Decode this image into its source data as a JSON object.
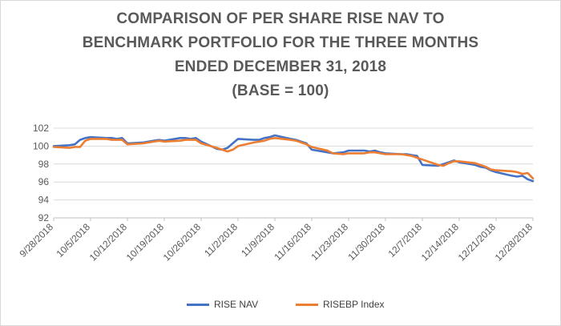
{
  "chart_data": {
    "type": "line",
    "title_lines": [
      "COMPARISON OF PER SHARE RISE NAV TO",
      "BENCHMARK PORTFOLIO FOR THE THREE MONTHS",
      "ENDED DECEMBER 31, 2018",
      "(BASE = 100)"
    ],
    "xlabel": "",
    "ylabel": "",
    "ylim": [
      92,
      102
    ],
    "yticks": [
      92,
      94,
      96,
      98,
      100,
      102
    ],
    "y_tick_labels": [
      "92",
      "94",
      "96",
      "98",
      "100",
      "102"
    ],
    "x_tick_labels": [
      "9/28/2018",
      "10/5/2018",
      "10/12/2018",
      "10/19/2018",
      "10/26/2018",
      "11/2/2018",
      "11/9/2018",
      "11/16/2018",
      "11/23/2018",
      "11/30/2018",
      "12/7/2018",
      "12/14/2018",
      "12/21/2018",
      "12/28/2018"
    ],
    "x_tick_day_offsets": [
      0,
      7,
      14,
      21,
      28,
      35,
      42,
      49,
      56,
      63,
      70,
      77,
      84,
      91
    ],
    "xlim_days": [
      0,
      91
    ],
    "grid": "horizontal",
    "legend_position": "bottom",
    "series": [
      {
        "name": "RISE NAV",
        "color": "#4472c4",
        "points": [
          [
            0,
            100.0
          ],
          [
            3,
            100.1
          ],
          [
            4,
            100.2
          ],
          [
            5,
            100.7
          ],
          [
            6,
            100.9
          ],
          [
            7,
            101.0
          ],
          [
            10,
            100.9
          ],
          [
            11,
            100.9
          ],
          [
            12,
            100.8
          ],
          [
            13,
            100.9
          ],
          [
            14,
            100.3
          ],
          [
            17,
            100.4
          ],
          [
            18,
            100.5
          ],
          [
            19,
            100.6
          ],
          [
            20,
            100.7
          ],
          [
            21,
            100.6
          ],
          [
            24,
            100.9
          ],
          [
            25,
            100.9
          ],
          [
            26,
            100.8
          ],
          [
            27,
            100.9
          ],
          [
            28,
            100.5
          ],
          [
            31,
            99.7
          ],
          [
            32,
            99.6
          ],
          [
            33,
            99.8
          ],
          [
            34,
            100.3
          ],
          [
            35,
            100.8
          ],
          [
            38,
            100.7
          ],
          [
            39,
            100.7
          ],
          [
            40,
            100.9
          ],
          [
            41,
            101.0
          ],
          [
            42,
            101.2
          ],
          [
            45,
            100.8
          ],
          [
            46,
            100.7
          ],
          [
            47,
            100.5
          ],
          [
            48,
            100.3
          ],
          [
            49,
            99.6
          ],
          [
            52,
            99.3
          ],
          [
            53,
            99.2
          ],
          [
            55,
            99.3
          ],
          [
            56,
            99.5
          ],
          [
            59,
            99.5
          ],
          [
            60,
            99.4
          ],
          [
            61,
            99.5
          ],
          [
            62,
            99.3
          ],
          [
            63,
            99.2
          ],
          [
            66,
            99.1
          ],
          [
            67,
            99.1
          ],
          [
            68,
            99.0
          ],
          [
            69,
            98.9
          ],
          [
            70,
            97.9
          ],
          [
            73,
            97.8
          ],
          [
            74,
            98.0
          ],
          [
            75,
            98.2
          ],
          [
            76,
            98.4
          ],
          [
            77,
            98.2
          ],
          [
            80,
            97.9
          ],
          [
            81,
            97.7
          ],
          [
            82,
            97.6
          ],
          [
            83,
            97.3
          ],
          [
            84,
            97.1
          ],
          [
            87,
            96.7
          ],
          [
            88,
            96.6
          ],
          [
            89,
            96.7
          ],
          [
            90,
            96.3
          ],
          [
            91,
            96.1
          ]
        ]
      },
      {
        "name": "RISEBP Index",
        "color": "#ed7d31",
        "points": [
          [
            0,
            99.9
          ],
          [
            3,
            99.8
          ],
          [
            4,
            99.9
          ],
          [
            5,
            99.9
          ],
          [
            6,
            100.6
          ],
          [
            7,
            100.8
          ],
          [
            10,
            100.8
          ],
          [
            11,
            100.7
          ],
          [
            12,
            100.7
          ],
          [
            13,
            100.7
          ],
          [
            14,
            100.2
          ],
          [
            17,
            100.3
          ],
          [
            18,
            100.4
          ],
          [
            19,
            100.5
          ],
          [
            20,
            100.6
          ],
          [
            21,
            100.5
          ],
          [
            24,
            100.6
          ],
          [
            25,
            100.7
          ],
          [
            26,
            100.7
          ],
          [
            27,
            100.7
          ],
          [
            28,
            100.3
          ],
          [
            31,
            99.8
          ],
          [
            32,
            99.6
          ],
          [
            33,
            99.4
          ],
          [
            34,
            99.6
          ],
          [
            35,
            100.0
          ],
          [
            38,
            100.4
          ],
          [
            39,
            100.5
          ],
          [
            40,
            100.6
          ],
          [
            41,
            100.8
          ],
          [
            42,
            100.9
          ],
          [
            45,
            100.7
          ],
          [
            46,
            100.6
          ],
          [
            47,
            100.4
          ],
          [
            48,
            100.2
          ],
          [
            49,
            99.9
          ],
          [
            52,
            99.5
          ],
          [
            53,
            99.2
          ],
          [
            55,
            99.1
          ],
          [
            56,
            99.2
          ],
          [
            59,
            99.2
          ],
          [
            60,
            99.3
          ],
          [
            61,
            99.3
          ],
          [
            62,
            99.2
          ],
          [
            63,
            99.1
          ],
          [
            66,
            99.1
          ],
          [
            67,
            99.0
          ],
          [
            68,
            98.9
          ],
          [
            69,
            98.7
          ],
          [
            70,
            98.5
          ],
          [
            73,
            97.9
          ],
          [
            74,
            97.8
          ],
          [
            75,
            98.1
          ],
          [
            76,
            98.3
          ],
          [
            77,
            98.3
          ],
          [
            80,
            98.1
          ],
          [
            81,
            97.9
          ],
          [
            82,
            97.7
          ],
          [
            83,
            97.4
          ],
          [
            84,
            97.3
          ],
          [
            87,
            97.2
          ],
          [
            88,
            97.1
          ],
          [
            89,
            96.9
          ],
          [
            90,
            97.0
          ],
          [
            91,
            96.4
          ]
        ]
      }
    ]
  }
}
